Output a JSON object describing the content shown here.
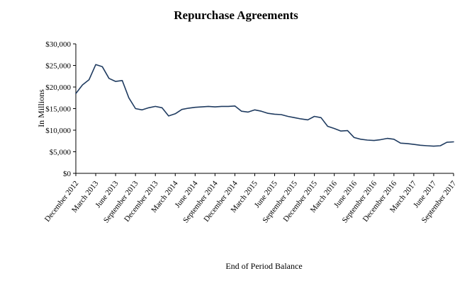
{
  "chart": {
    "title": "Repurchase Agreements",
    "xlabel": "End of Period Balance",
    "ylabel": "In Millions"
  },
  "chart_data": {
    "type": "line",
    "title": "Repurchase Agreements",
    "xlabel": "End of Period Balance",
    "ylabel": "In Millions",
    "ylim": [
      0,
      30000
    ],
    "grid": false,
    "legend": "none",
    "line_color": "#1f3b60",
    "frequency": "monthly",
    "x_start": "December 2012",
    "x_end": "September 2017",
    "values": [
      18500,
      20500,
      21700,
      25200,
      24700,
      22000,
      21300,
      21500,
      17500,
      15000,
      14700,
      15200,
      15500,
      15200,
      13300,
      13800,
      14800,
      15100,
      15300,
      15400,
      15500,
      15400,
      15500,
      15500,
      15600,
      14400,
      14200,
      14700,
      14400,
      13900,
      13700,
      13600,
      13200,
      12900,
      12600,
      12400,
      13200,
      12900,
      10900,
      10400,
      9800,
      9900,
      8300,
      7900,
      7700,
      7600,
      7800,
      8100,
      7900,
      7000,
      6900,
      6700,
      6500,
      6400,
      6300,
      6400,
      7200,
      7300
    ],
    "x_tick_every": 3,
    "x_tick_labels": [
      "December 2012",
      "March 2013",
      "June 2013",
      "September 2013",
      "December 2013",
      "March 2014",
      "June 2014",
      "September 2014",
      "December 2014",
      "March 2015",
      "June 2015",
      "September 2015",
      "December 2015",
      "March 2016",
      "June 2016",
      "September 2016",
      "December 2016",
      "March 2017",
      "June 2017",
      "September 2017"
    ],
    "y_ticks": [
      {
        "value": 0,
        "label": "$0"
      },
      {
        "value": 5000,
        "label": "$5,000"
      },
      {
        "value": 10000,
        "label": "$10,000"
      },
      {
        "value": 15000,
        "label": "$15,000"
      },
      {
        "value": 20000,
        "label": "$20,000"
      },
      {
        "value": 25000,
        "label": "$25,000"
      },
      {
        "value": 30000,
        "label": "$30,000"
      }
    ]
  }
}
